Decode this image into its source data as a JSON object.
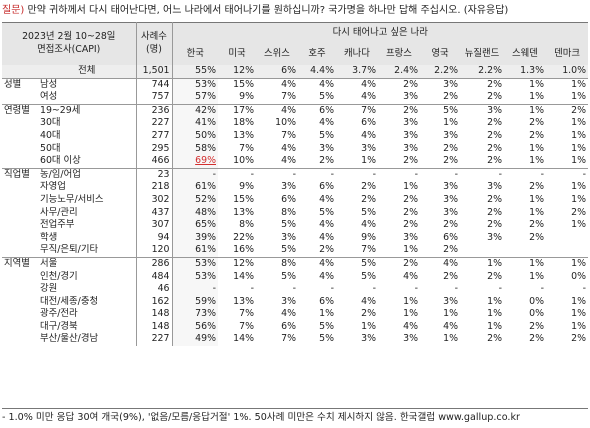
{
  "question": {
    "tag": "질문)",
    "text": "만약 귀하께서 다시 태어난다면, 어느 나라에서 태어나기를 원하십니까? 국가명을 하나만 답해 주십시오. (자유응답)"
  },
  "header": {
    "survey_line1": "2023년 2월 10~28일",
    "survey_line2": "면접조사(CAPI)",
    "sample_line1": "사례수",
    "sample_line2": "(명)",
    "group_title": "다시 태어나고 싶은 나라",
    "countries": [
      "한국",
      "미국",
      "스위스",
      "호주",
      "캐나다",
      "프랑스",
      "영국",
      "뉴질랜드",
      "스웨덴",
      "덴마크"
    ]
  },
  "rows": [
    {
      "g": "",
      "label": "전체",
      "n": "1,501",
      "v": [
        "55%",
        "12%",
        "6%",
        "4.4%",
        "3.7%",
        "2.4%",
        "2.2%",
        "2.2%",
        "1.3%",
        "1.0%"
      ],
      "cls": "total"
    },
    {
      "g": "성별",
      "label": "남성",
      "n": "744",
      "v": [
        "53%",
        "15%",
        "4%",
        "4%",
        "4%",
        "2%",
        "3%",
        "2%",
        "1%",
        "1%"
      ],
      "cls": ""
    },
    {
      "g": "",
      "label": "여성",
      "n": "757",
      "v": [
        "57%",
        "9%",
        "7%",
        "5%",
        "4%",
        "3%",
        "2%",
        "2%",
        "1%",
        "1%"
      ],
      "cls": "seg-end"
    },
    {
      "g": "연령별",
      "label": "19~29세",
      "n": "236",
      "v": [
        "42%",
        "17%",
        "4%",
        "6%",
        "7%",
        "2%",
        "5%",
        "3%",
        "1%",
        "2%"
      ],
      "cls": ""
    },
    {
      "g": "",
      "label": "30대",
      "n": "227",
      "v": [
        "41%",
        "18%",
        "10%",
        "4%",
        "6%",
        "3%",
        "1%",
        "2%",
        "2%",
        "1%"
      ],
      "cls": ""
    },
    {
      "g": "",
      "label": "40대",
      "n": "277",
      "v": [
        "50%",
        "13%",
        "7%",
        "5%",
        "4%",
        "3%",
        "3%",
        "2%",
        "2%",
        "1%"
      ],
      "cls": ""
    },
    {
      "g": "",
      "label": "50대",
      "n": "295",
      "v": [
        "58%",
        "7%",
        "4%",
        "3%",
        "3%",
        "3%",
        "2%",
        "2%",
        "1%",
        "1%"
      ],
      "cls": ""
    },
    {
      "g": "",
      "label": "60대 이상",
      "n": "466",
      "v": [
        "69%",
        "10%",
        "4%",
        "2%",
        "1%",
        "2%",
        "2%",
        "2%",
        "1%",
        "1%"
      ],
      "cls": "seg-end",
      "hl": 0
    },
    {
      "g": "직업별",
      "label": "농/임/어업",
      "n": "23",
      "v": [
        "-",
        "-",
        "-",
        "-",
        "-",
        "-",
        "-",
        "-",
        "-",
        "-"
      ],
      "cls": ""
    },
    {
      "g": "",
      "label": "자영업",
      "n": "218",
      "v": [
        "61%",
        "9%",
        "3%",
        "6%",
        "2%",
        "1%",
        "3%",
        "3%",
        "2%",
        "1%"
      ],
      "cls": ""
    },
    {
      "g": "",
      "label": "기능노무/서비스",
      "n": "302",
      "v": [
        "52%",
        "15%",
        "6%",
        "4%",
        "2%",
        "2%",
        "3%",
        "2%",
        "1%",
        "1%"
      ],
      "cls": ""
    },
    {
      "g": "",
      "label": "사무/관리",
      "n": "437",
      "v": [
        "48%",
        "13%",
        "8%",
        "5%",
        "5%",
        "2%",
        "3%",
        "2%",
        "1%",
        "2%"
      ],
      "cls": ""
    },
    {
      "g": "",
      "label": "전업주부",
      "n": "307",
      "v": [
        "65%",
        "8%",
        "5%",
        "4%",
        "4%",
        "2%",
        "2%",
        "2%",
        "2%",
        "1%"
      ],
      "cls": ""
    },
    {
      "g": "",
      "label": "학생",
      "n": "94",
      "v": [
        "39%",
        "22%",
        "3%",
        "4%",
        "9%",
        "3%",
        "6%",
        "3%",
        "2%",
        ""
      ],
      "cls": ""
    },
    {
      "g": "",
      "label": "무직/은퇴/기타",
      "n": "120",
      "v": [
        "61%",
        "16%",
        "5%",
        "2%",
        "7%",
        "1%",
        "2%",
        "",
        "",
        ""
      ],
      "cls": "seg-end"
    },
    {
      "g": "지역별",
      "label": "서울",
      "n": "286",
      "v": [
        "53%",
        "12%",
        "8%",
        "4%",
        "5%",
        "2%",
        "4%",
        "1%",
        "1%",
        "1%"
      ],
      "cls": ""
    },
    {
      "g": "",
      "label": "인천/경기",
      "n": "484",
      "v": [
        "53%",
        "14%",
        "5%",
        "4%",
        "5%",
        "4%",
        "2%",
        "2%",
        "1%",
        "0%"
      ],
      "cls": ""
    },
    {
      "g": "",
      "label": "강원",
      "n": "46",
      "v": [
        "-",
        "-",
        "-",
        "-",
        "-",
        "-",
        "-",
        "-",
        "-",
        "-"
      ],
      "cls": ""
    },
    {
      "g": "",
      "label": "대전/세종/충청",
      "n": "162",
      "v": [
        "59%",
        "13%",
        "3%",
        "6%",
        "4%",
        "1%",
        "3%",
        "1%",
        "0%",
        "1%"
      ],
      "cls": ""
    },
    {
      "g": "",
      "label": "광주/전라",
      "n": "148",
      "v": [
        "73%",
        "7%",
        "4%",
        "1%",
        "2%",
        "1%",
        "1%",
        "1%",
        "0%",
        "1%"
      ],
      "cls": ""
    },
    {
      "g": "",
      "label": "대구/경북",
      "n": "148",
      "v": [
        "56%",
        "7%",
        "6%",
        "5%",
        "1%",
        "4%",
        "4%",
        "1%",
        "2%",
        "1%"
      ],
      "cls": ""
    },
    {
      "g": "",
      "label": "부산/울산/경남",
      "n": "227",
      "v": [
        "49%",
        "14%",
        "7%",
        "5%",
        "3%",
        "3%",
        "1%",
        "2%",
        "2%",
        "2%"
      ],
      "cls": ""
    }
  ],
  "footnote": "- 1.0% 미만 응답 30여 개국(9%), '없음/모름/응답거절' 1%. 50사례 미만은 수치 제시하지 않음. 한국갤럽 www.gallup.co.kr"
}
